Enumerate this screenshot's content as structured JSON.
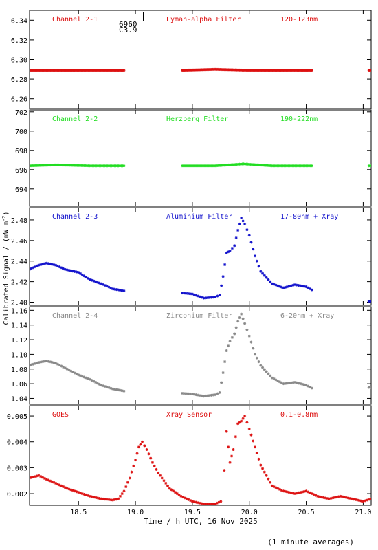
{
  "figure": {
    "ylabel": "Calibrated Signal / (mW m",
    "ylabel_sup": "-2",
    "ylabel_end": ")",
    "xlabel": "Time / h UTC, 16 Nov 2025",
    "footnote": "(1 minute averages)",
    "marker_labels": [
      "6960",
      "C3.9"
    ],
    "x_ticks": [
      "18.5",
      "19.0",
      "19.5",
      "20.0",
      "20.5",
      "21.0"
    ]
  },
  "chart_data": [
    {
      "type": "scatter",
      "channel": "Channel 2-1",
      "filter": "Lyman-alpha Filter",
      "band": "120-123nm",
      "color": "#dd1111",
      "xlim": [
        18.07,
        21.07
      ],
      "ylim": [
        6.25,
        6.35
      ],
      "yticks": [
        "6.26",
        "6.28",
        "6.30",
        "6.32",
        "6.34"
      ],
      "segments": [
        {
          "x": [
            18.07,
            18.3,
            18.6,
            18.9
          ],
          "y": [
            6.289,
            6.289,
            6.289,
            6.289
          ]
        },
        {
          "x": [
            19.41,
            19.7,
            20.0,
            20.3,
            20.55
          ],
          "y": [
            6.289,
            6.29,
            6.289,
            6.289,
            6.289
          ]
        },
        {
          "x": [
            21.05,
            21.07
          ],
          "y": [
            6.289,
            6.289
          ]
        }
      ]
    },
    {
      "type": "scatter",
      "channel": "Channel 2-2",
      "filter": "Herzberg Filter",
      "band": "190-222nm",
      "color": "#22dd22",
      "xlim": [
        18.07,
        21.07
      ],
      "ylim": [
        692.2,
        702.2
      ],
      "yticks": [
        "694",
        "696",
        "698",
        "700",
        "702"
      ],
      "segments": [
        {
          "x": [
            18.07,
            18.3,
            18.6,
            18.9
          ],
          "y": [
            696.4,
            696.5,
            696.4,
            696.4
          ]
        },
        {
          "x": [
            19.41,
            19.7,
            19.95,
            20.2,
            20.55
          ],
          "y": [
            696.4,
            696.4,
            696.6,
            696.4,
            696.4
          ]
        },
        {
          "x": [
            21.05,
            21.07
          ],
          "y": [
            696.4,
            696.4
          ]
        }
      ]
    },
    {
      "type": "scatter",
      "channel": "Channel 2-3",
      "filter": "Aluminium Filter",
      "band": "17-80nm + Xray",
      "color": "#1111cc",
      "xlim": [
        18.07,
        21.07
      ],
      "ylim": [
        2.397,
        2.492
      ],
      "yticks": [
        "2.40",
        "2.42",
        "2.44",
        "2.46",
        "2.48"
      ],
      "segments": [
        {
          "x": [
            18.07,
            18.15,
            18.22,
            18.3,
            18.38,
            18.5,
            18.6,
            18.7,
            18.8,
            18.9
          ],
          "y": [
            2.432,
            2.436,
            2.438,
            2.436,
            2.432,
            2.429,
            2.422,
            2.418,
            2.413,
            2.411
          ]
        },
        {
          "x": [
            19.41,
            19.5,
            19.6,
            19.7,
            19.74,
            19.77,
            19.8,
            19.83,
            19.87,
            19.9,
            19.93,
            19.96,
            20.0,
            20.05,
            20.1,
            20.2,
            20.3,
            20.4,
            20.5,
            20.55
          ],
          "y": [
            2.409,
            2.408,
            2.404,
            2.405,
            2.407,
            2.425,
            2.448,
            2.45,
            2.455,
            2.47,
            2.482,
            2.476,
            2.465,
            2.445,
            2.43,
            2.418,
            2.414,
            2.417,
            2.415,
            2.412
          ]
        },
        {
          "x": [
            21.05,
            21.07
          ],
          "y": [
            2.401,
            2.401
          ]
        }
      ]
    },
    {
      "type": "scatter",
      "channel": "Channel 2-4",
      "filter": "Zirconium Filter",
      "band": "6-20nm + Xray",
      "color": "#888888",
      "xlim": [
        18.07,
        21.07
      ],
      "ylim": [
        1.032,
        1.165
      ],
      "yticks": [
        "1.04",
        "1.06",
        "1.08",
        "1.10",
        "1.12",
        "1.14",
        "1.16"
      ],
      "segments": [
        {
          "x": [
            18.07,
            18.15,
            18.22,
            18.3,
            18.4,
            18.5,
            18.6,
            18.7,
            18.8,
            18.9
          ],
          "y": [
            1.085,
            1.089,
            1.091,
            1.088,
            1.08,
            1.072,
            1.066,
            1.058,
            1.053,
            1.05
          ]
        },
        {
          "x": [
            19.41,
            19.5,
            19.6,
            19.7,
            19.74,
            19.77,
            19.8,
            19.83,
            19.87,
            19.9,
            19.93,
            19.96,
            20.0,
            20.05,
            20.1,
            20.2,
            20.3,
            20.4,
            20.5,
            20.55
          ],
          "y": [
            1.047,
            1.046,
            1.043,
            1.045,
            1.048,
            1.075,
            1.105,
            1.118,
            1.128,
            1.145,
            1.155,
            1.142,
            1.125,
            1.1,
            1.085,
            1.068,
            1.06,
            1.062,
            1.058,
            1.054
          ]
        },
        {
          "x": [
            21.05,
            21.07
          ],
          "y": [
            1.055,
            1.055
          ]
        }
      ]
    },
    {
      "type": "scatter",
      "channel": "GOES",
      "filter": "Xray Sensor",
      "band": "0.1-0.8nm",
      "color": "#dd1111",
      "xlim": [
        18.07,
        21.07
      ],
      "ylim": [
        0.00155,
        0.0054
      ],
      "yticks": [
        "0.002",
        "0.003",
        "0.004",
        "0.005"
      ],
      "segments": [
        {
          "x": [
            18.07,
            18.15,
            18.22,
            18.3,
            18.4,
            18.5,
            18.6,
            18.7,
            18.8,
            18.85,
            18.9,
            18.95,
            19.0,
            19.03,
            19.06,
            19.1,
            19.15,
            19.2,
            19.3,
            19.4,
            19.5,
            19.6,
            19.7,
            19.75
          ],
          "y": [
            0.0026,
            0.0027,
            0.00255,
            0.0024,
            0.0022,
            0.00205,
            0.0019,
            0.0018,
            0.00175,
            0.0018,
            0.0021,
            0.0026,
            0.0033,
            0.0038,
            0.004,
            0.0037,
            0.0032,
            0.0028,
            0.0022,
            0.0019,
            0.0017,
            0.0016,
            0.0016,
            0.0017
          ]
        },
        {
          "x": [
            19.78,
            19.8,
            19.83,
            19.86,
            19.9,
            19.93,
            19.96,
            20.0,
            20.05,
            20.1,
            20.2,
            20.3,
            20.4,
            20.5,
            20.6,
            20.7,
            20.8,
            20.9,
            21.0,
            21.07
          ],
          "y": [
            0.0029,
            0.0044,
            0.0032,
            0.0037,
            0.0047,
            0.0048,
            0.005,
            0.0045,
            0.0038,
            0.0031,
            0.0023,
            0.0021,
            0.002,
            0.0021,
            0.0019,
            0.0018,
            0.0019,
            0.0018,
            0.0017,
            0.0018
          ]
        }
      ]
    }
  ]
}
